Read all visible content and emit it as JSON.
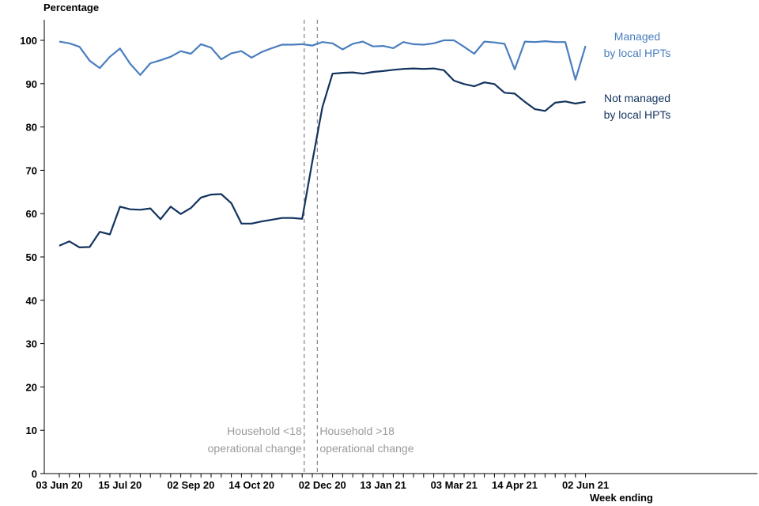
{
  "chart_data": {
    "type": "line",
    "ylabel": "Percentage",
    "xlabel": "Week ending",
    "ylim": [
      0,
      100
    ],
    "yticks": [
      0,
      10,
      20,
      30,
      40,
      50,
      60,
      70,
      80,
      90,
      100
    ],
    "xticks": [
      "03 Jun 20",
      "15 Jul 20",
      "02 Sep 20",
      "14 Oct 20",
      "02 Dec 20",
      "13 Jan 21",
      "03 Mar 21",
      "14 Apr 21",
      "02 Jun 21"
    ],
    "xtick_index": [
      0,
      6,
      13,
      19,
      26,
      32,
      39,
      45,
      52
    ],
    "weeks": 53,
    "grid": false,
    "series": [
      {
        "name": "Managed by local HPTs",
        "label_lines": [
          "Managed",
          "by local HPTs"
        ],
        "color": "#4a7ebf",
        "values": [
          99.7,
          99.3,
          98.5,
          95.3,
          93.6,
          96.2,
          98.1,
          94.6,
          92.0,
          94.7,
          95.4,
          96.2,
          97.5,
          96.9,
          99.1,
          98.3,
          95.6,
          97.0,
          97.5,
          96.0,
          97.3,
          98.2,
          99.0,
          99.0,
          99.1,
          98.8,
          99.6,
          99.3,
          97.9,
          99.2,
          99.7,
          98.6,
          98.7,
          98.2,
          99.6,
          99.1,
          99.0,
          99.3,
          100.0,
          100.0,
          98.5,
          96.9,
          99.7,
          99.5,
          99.2,
          93.3,
          99.7,
          99.6,
          99.8,
          99.6,
          99.6,
          90.9,
          98.7
        ]
      },
      {
        "name": "Not managed by local HPTs",
        "label_lines": [
          "Not managed",
          "by local HPTs"
        ],
        "color": "#12335e",
        "values": [
          52.6,
          53.6,
          52.2,
          52.3,
          55.8,
          55.2,
          61.6,
          61.0,
          60.9,
          61.2,
          58.7,
          61.6,
          59.9,
          61.3,
          63.7,
          64.4,
          64.5,
          62.4,
          57.7,
          57.7,
          58.2,
          58.6,
          59.0,
          59.0,
          58.8,
          72.0,
          84.6,
          92.3,
          92.5,
          92.6,
          92.3,
          92.7,
          92.9,
          93.2,
          93.4,
          93.5,
          93.4,
          93.5,
          93.1,
          90.7,
          89.9,
          89.4,
          90.3,
          89.9,
          87.9,
          87.7,
          85.8,
          84.1,
          83.7,
          85.6,
          85.9,
          85.4,
          85.8
        ]
      }
    ],
    "annotations": [
      {
        "lines": [
          "Household <18",
          "operational change"
        ],
        "x_index": 24.2,
        "side": "left"
      },
      {
        "lines": [
          "Household >18",
          "operational change"
        ],
        "x_index": 25.5,
        "side": "right"
      }
    ]
  }
}
